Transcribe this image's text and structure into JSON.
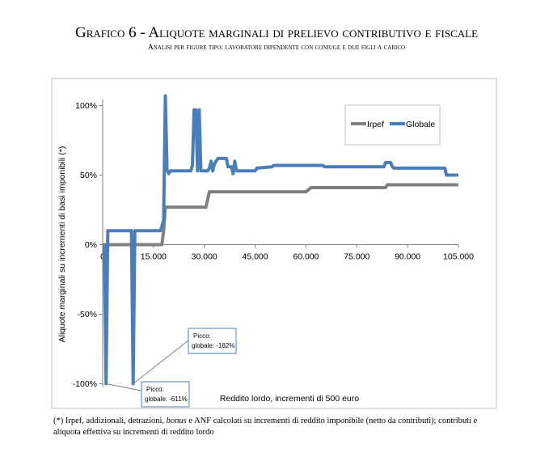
{
  "header": {
    "title": "Grafico 6 - Aliquote marginali di prelievo contributivo e fiscale",
    "subtitle": "Analisi per figure tipo: lavoratore dipendente con coniuge e due figli a carico"
  },
  "footnote": {
    "marker": "(*)",
    "pre": " Irpef, addizionali, detrazioni, ",
    "italic": "bonus",
    "post": " e ANF calcolati su incrementi di reddito imponibile (netto da contributi); contributi e aliquota effettiva su incrementi di reddito lordo"
  },
  "chart_data": {
    "type": "line",
    "xlabel": "Reddito lordo, incrementi di 500 euro",
    "ylabel": "Aliquote marginali su incrementi di basi imponibili (*)",
    "xlim": [
      0,
      105000
    ],
    "ylim": [
      -100,
      110
    ],
    "x_ticks": [
      0,
      15000,
      30000,
      45000,
      60000,
      75000,
      90000,
      105000
    ],
    "x_tick_labels": [
      "0",
      "15.000",
      "30.000",
      "45.000",
      "60.000",
      "75.000",
      "90.000",
      "105.000"
    ],
    "y_ticks": [
      -100,
      -50,
      0,
      50,
      100
    ],
    "y_tick_labels": [
      "-100%",
      "-50%",
      "0%",
      "50%",
      "100%"
    ],
    "legend_position": "top-right",
    "series": [
      {
        "name": "Irpef",
        "color": "#808080",
        "points": [
          [
            0,
            0
          ],
          [
            17500,
            0
          ],
          [
            18000,
            10
          ],
          [
            18500,
            27
          ],
          [
            30500,
            27
          ],
          [
            31500,
            38
          ],
          [
            60000,
            38
          ],
          [
            61500,
            41
          ],
          [
            83500,
            41
          ],
          [
            84000,
            43
          ],
          [
            105000,
            43
          ]
        ]
      },
      {
        "name": "Globale",
        "color": "#4a7ebb",
        "points": [
          [
            500,
            0
          ],
          [
            1000,
            -100
          ],
          [
            1500,
            10
          ],
          [
            8500,
            10
          ],
          [
            9000,
            -100
          ],
          [
            9500,
            10
          ],
          [
            17000,
            10
          ],
          [
            17500,
            13
          ],
          [
            18000,
            18
          ],
          [
            18500,
            107
          ],
          [
            19000,
            54
          ],
          [
            19500,
            51
          ],
          [
            20000,
            53
          ],
          [
            26000,
            53
          ],
          [
            26500,
            57
          ],
          [
            27000,
            97
          ],
          [
            27500,
            97
          ],
          [
            28000,
            53
          ],
          [
            28500,
            97
          ],
          [
            29000,
            53
          ],
          [
            31000,
            53
          ],
          [
            31500,
            55
          ],
          [
            32000,
            60
          ],
          [
            32500,
            53
          ],
          [
            33000,
            58
          ],
          [
            34000,
            62
          ],
          [
            36500,
            62
          ],
          [
            37000,
            56
          ],
          [
            38000,
            56
          ],
          [
            38500,
            51
          ],
          [
            39000,
            60
          ],
          [
            39500,
            53
          ],
          [
            45000,
            53
          ],
          [
            45500,
            55
          ],
          [
            50000,
            56
          ],
          [
            50500,
            57
          ],
          [
            65000,
            57
          ],
          [
            65500,
            56
          ],
          [
            83000,
            56
          ],
          [
            83500,
            59
          ],
          [
            85000,
            59
          ],
          [
            85500,
            56
          ],
          [
            86000,
            55
          ],
          [
            101000,
            55
          ],
          [
            101500,
            50
          ],
          [
            105000,
            50
          ]
        ]
      }
    ],
    "annotations": [
      {
        "text_line1": "Picco:",
        "text_line2": "globale: -182%",
        "x": 9000,
        "y": -100
      },
      {
        "text_line1": "Picco:",
        "text_line2": "globale: -611%",
        "x": 1000,
        "y": -100
      }
    ]
  },
  "colors": {
    "axis": "#808080",
    "frame": "#c0c0c0",
    "callout_border": "#4a7ebb"
  }
}
